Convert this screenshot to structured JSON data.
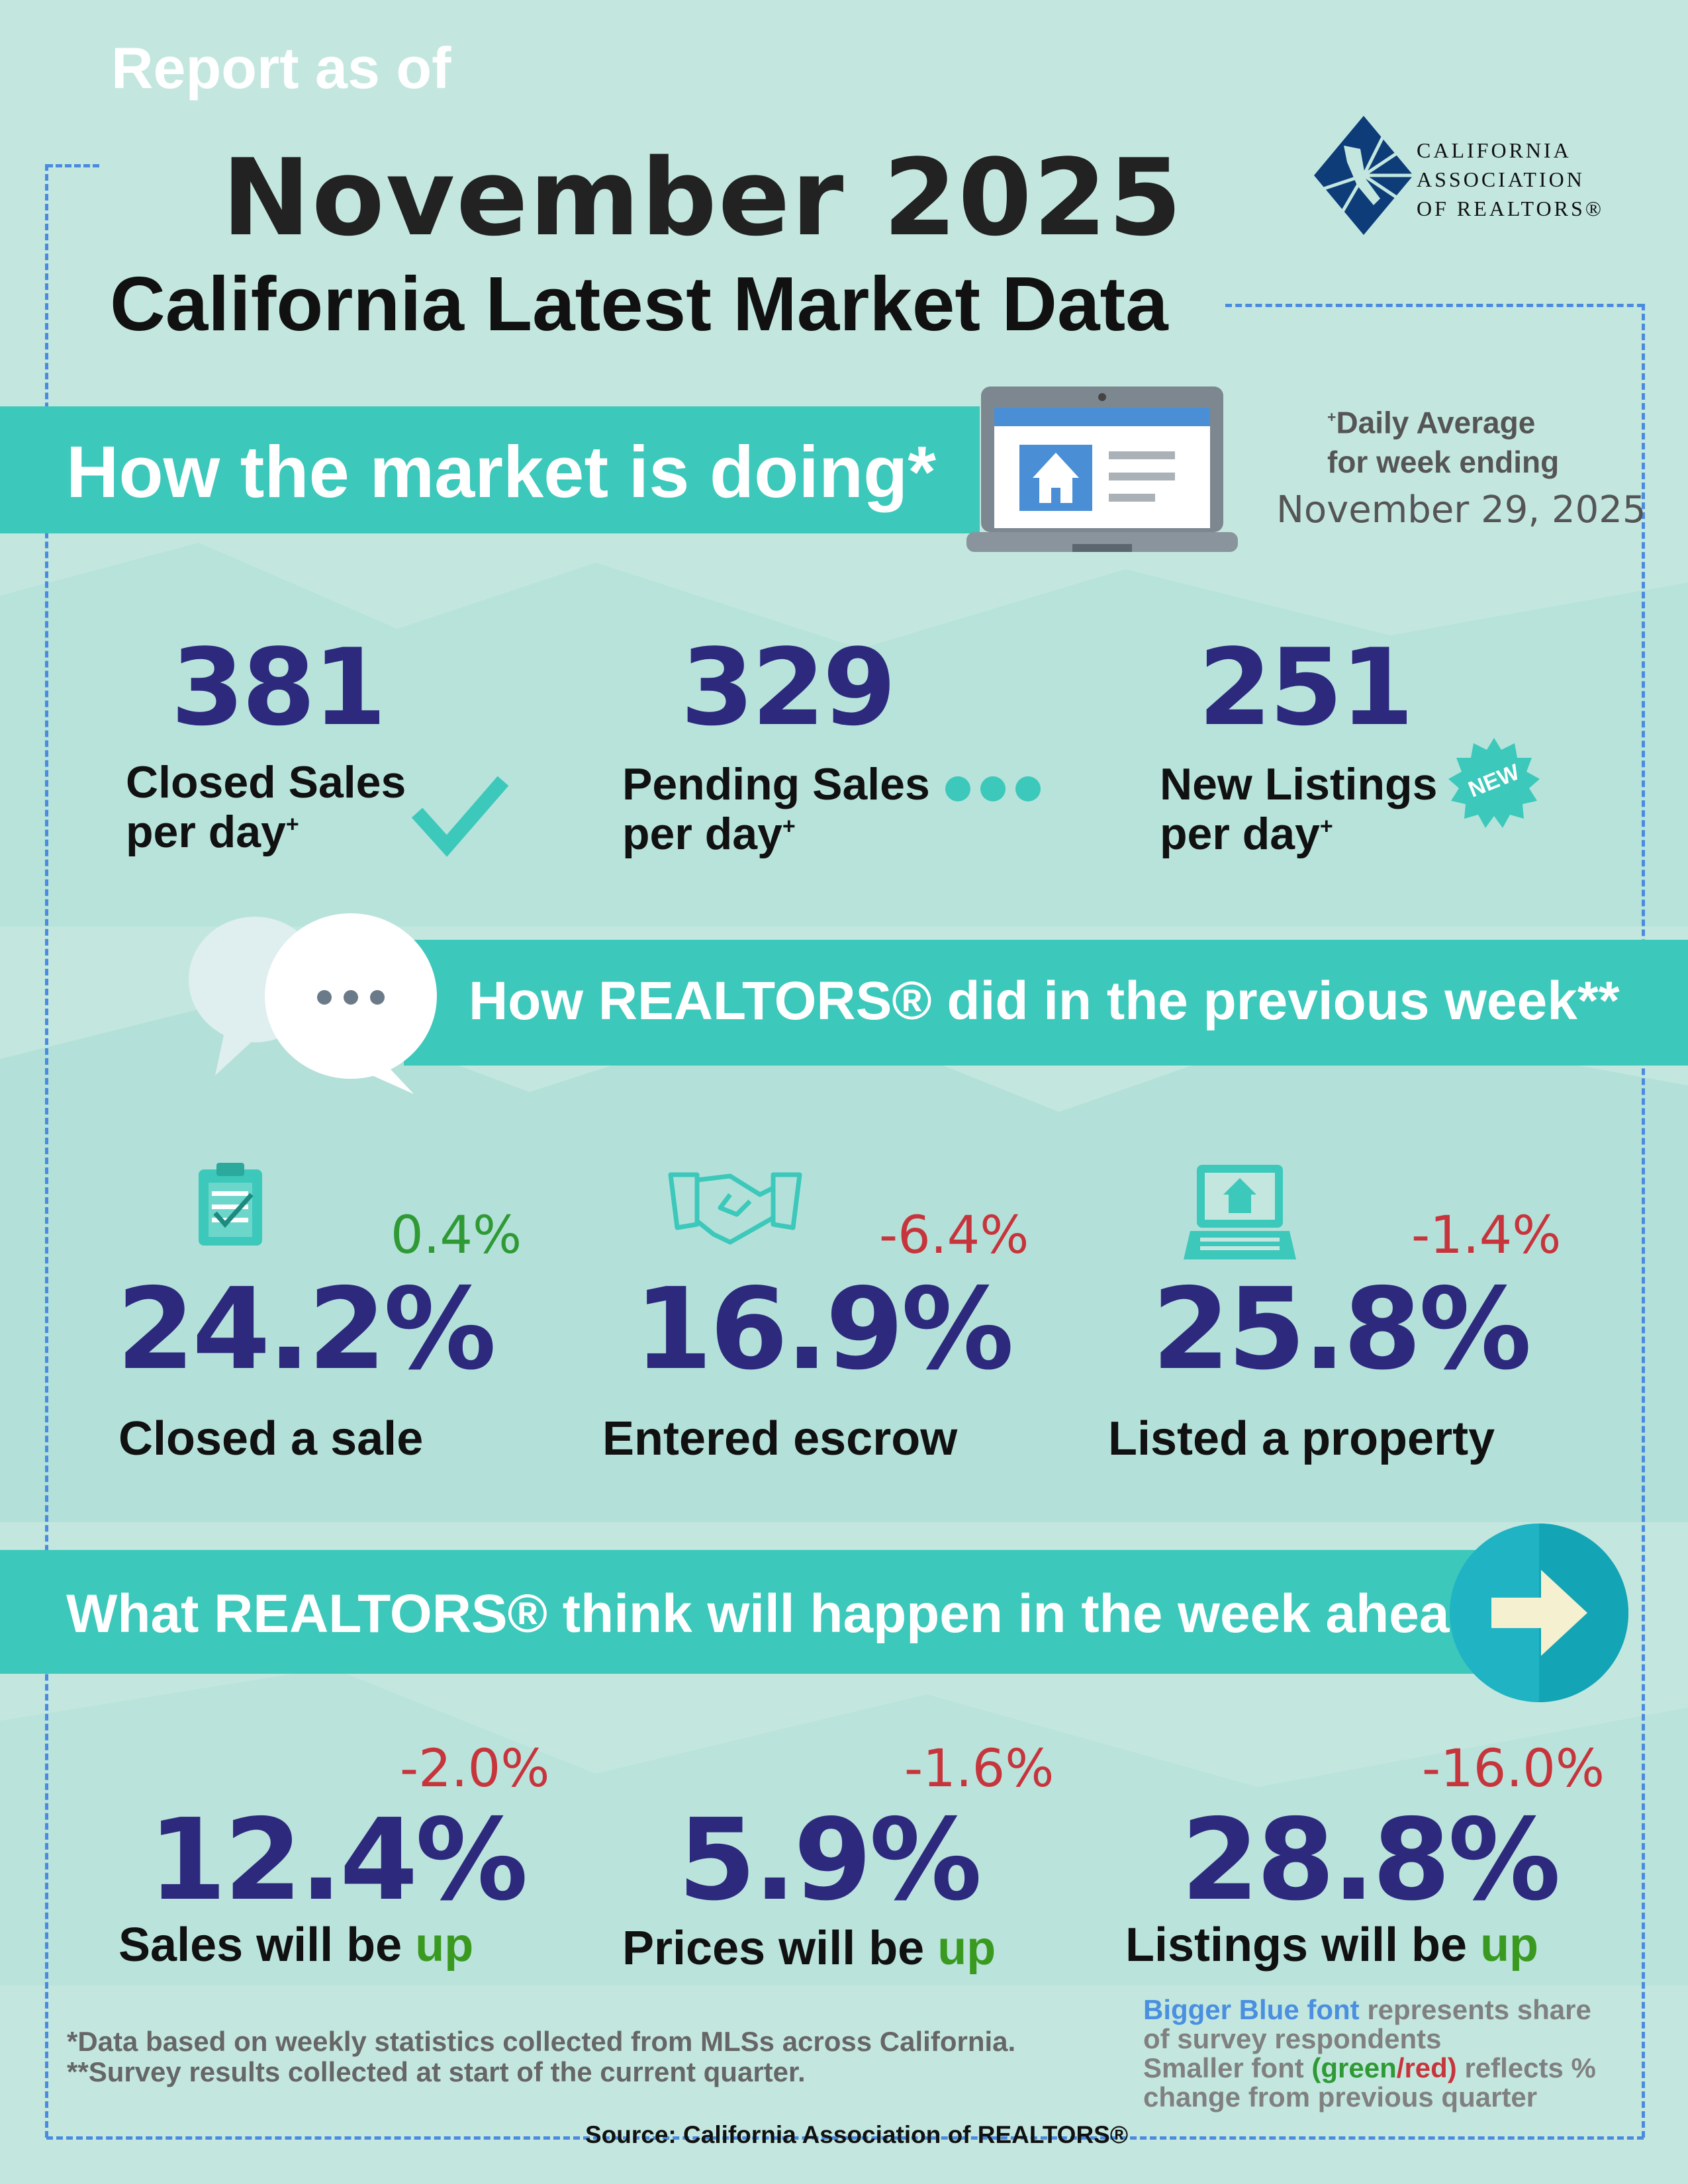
{
  "header": {
    "report_as_of": "Report as of",
    "month": "November 2025",
    "title": "California Latest Market Data"
  },
  "logo": {
    "line1": "CALIFORNIA",
    "line2": "ASSOCIATION",
    "line3": "OF REALTORS®",
    "color": "#0d3c78"
  },
  "market": {
    "banner": "How the market is doing*",
    "daily_average_line1": "Daily Average",
    "daily_average_plus": "+",
    "daily_average_line2": "for week ending",
    "week_ending": "November 29, 2025",
    "stats": [
      {
        "value": "381",
        "label1": "Closed Sales",
        "label2": "per day",
        "plus": "+",
        "icon": "checkmark-icon"
      },
      {
        "value": "329",
        "label1": "Pending Sales",
        "label2": "per day",
        "plus": "+",
        "icon": "dots-icon"
      },
      {
        "value": "251",
        "label1": "New Listings",
        "label2": "per day",
        "plus": "+",
        "icon": "new-badge-icon",
        "badge": "NEW"
      }
    ]
  },
  "previous_week": {
    "banner": "How REALTORS® did in the previous week**",
    "stats": [
      {
        "value": "24.2%",
        "change": "0.4%",
        "change_dir": "positive",
        "label": "Closed a sale",
        "icon": "clipboard-icon"
      },
      {
        "value": "16.9%",
        "change": "-6.4%",
        "change_dir": "negative",
        "label": "Entered escrow",
        "icon": "handshake-icon"
      },
      {
        "value": "25.8%",
        "change": "-1.4%",
        "change_dir": "negative",
        "label": "Listed a property",
        "icon": "laptop-house-icon"
      }
    ]
  },
  "week_ahead": {
    "banner": "What REALTORS® think will happen in the week ahead**",
    "stats": [
      {
        "value": "12.4%",
        "change": "-2.0%",
        "change_dir": "negative",
        "label": "Sales will be",
        "direction": "up"
      },
      {
        "value": "5.9%",
        "change": "-1.6%",
        "change_dir": "negative",
        "label": "Prices will be",
        "direction": "up"
      },
      {
        "value": "28.8%",
        "change": "-16.0%",
        "change_dir": "negative",
        "label": "Listings will be",
        "direction": "up"
      }
    ]
  },
  "footnotes": {
    "note1": "*Data based on weekly statistics collected from MLSs across California.",
    "note2": "**Survey results collected at start of the current quarter."
  },
  "legend": {
    "blue_part": "Bigger Blue font",
    "blue_rest": " represents share of survey respondents",
    "smaller": "Smaller font ",
    "paren_open": "(",
    "green": "green",
    "slash": "/",
    "red": "red",
    "paren_close": ")",
    "rest": " reflects % change from previous quarter"
  },
  "source": "Source: California Association of REALTORS®",
  "colors": {
    "background": "#c3e7df",
    "banner": "#3cc8ba",
    "value_blue": "#2d2a7e",
    "positive": "#2f9a35",
    "negative": "#c7353c",
    "border": "#4a8be0"
  }
}
